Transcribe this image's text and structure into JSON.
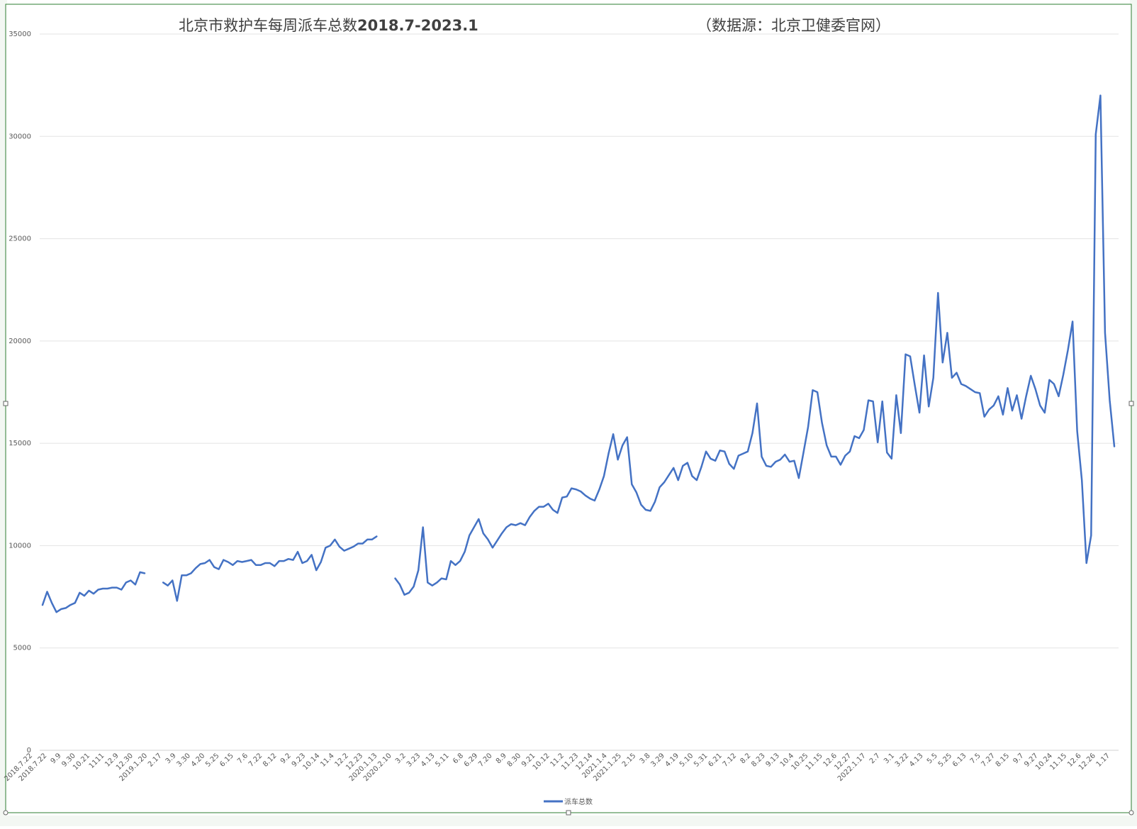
{
  "chart_data": {
    "type": "line",
    "title": "北京市救护车每周派车总数",
    "title_range": "2018.7-2023.1",
    "source_note": "（数据源：北京卫健委官网）",
    "ylim": [
      0,
      35000
    ],
    "y_ticks": [
      0,
      5000,
      10000,
      15000,
      20000,
      25000,
      30000,
      35000
    ],
    "y_tick_labels": [
      "0",
      "5000",
      "10000",
      "15000",
      "20000",
      "25000",
      "30000",
      "35000"
    ],
    "grid": true,
    "legend_position": "bottom",
    "line_color": "#4472C4",
    "x_tick_labels": [
      "2018.7.22",
      "2018.7.22",
      "9.9",
      "9.30",
      "10.21",
      "1111",
      "12.9",
      "12.30",
      "2019.1.20",
      "2.17",
      "3.9",
      "3.30",
      "4.20",
      "5.25",
      "6.15",
      "7.6",
      "7.22",
      "8.12",
      "9.2",
      "9.23",
      "10.14",
      "11.4",
      "12.2",
      "12.23",
      "2020.1.13",
      "2020.2.10",
      "3.2",
      "3.23",
      "4.13",
      "5.11",
      "6.8",
      "6.29",
      "7.20",
      "8.9",
      "8.30",
      "9.21",
      "10.12",
      "11.2",
      "11.23",
      "12.14",
      "2021.1.4",
      "2021.1.25",
      "2.15",
      "3.8",
      "3.29",
      "4.19",
      "5.10",
      "5.31",
      "6.21",
      "7.12",
      "8.2",
      "8.23",
      "9.13",
      "10.4",
      "10.25",
      "11.15",
      "12.6",
      "12.27",
      "2022.1.17",
      "2.7",
      "3.1",
      "3.22",
      "4.13",
      "5.5",
      "5.25",
      "6.13",
      "7.5",
      "7.27",
      "8.15",
      "9.7",
      "9.27",
      "10.24",
      "11.15",
      "12.6",
      "12.26",
      "1.17"
    ],
    "series": [
      {
        "name": "派车总数",
        "segments": [
          [
            7100,
            7750,
            7200,
            6750,
            6900,
            6950,
            7100,
            7200,
            7700,
            7550,
            7800,
            7650,
            7850,
            7900,
            7900,
            7950,
            7950,
            7850,
            8200,
            8300,
            8100,
            8700,
            8650
          ],
          [
            8200,
            8050,
            8300,
            7300,
            8550,
            8550,
            8650,
            8900,
            9100,
            9150,
            9300,
            8950,
            8850,
            9300,
            9200,
            9050,
            9250,
            9200,
            9250,
            9300,
            9050,
            9050,
            9150,
            9150,
            9000,
            9250,
            9250,
            9350,
            9300,
            9700,
            9150,
            9250,
            9550,
            8800,
            9200,
            9900,
            10000,
            10300,
            9950,
            9750,
            9850,
            9950,
            10100,
            10100,
            10300,
            10300,
            10450
          ],
          [
            8400,
            8100,
            7600,
            7700,
            8000,
            8800,
            10900,
            8200,
            8050,
            8200,
            8400,
            8350,
            9250,
            9050,
            9250,
            9700,
            10500,
            10900,
            11300,
            10600,
            10300,
            9900,
            10250,
            10600,
            10900,
            11050,
            11000,
            11100,
            11000,
            11400,
            11700,
            11900,
            11900,
            12050,
            11750,
            11600,
            12350,
            12400,
            12800,
            12750,
            12650,
            12450,
            12300,
            12200,
            12750,
            13400,
            14500,
            15450,
            14200,
            14900,
            15300,
            13000,
            12600,
            12000,
            11750,
            11700,
            12150,
            12850,
            13100,
            13450,
            13800,
            13200,
            13900,
            14050,
            13400,
            13200,
            13850,
            14600,
            14250,
            14150,
            14650,
            14600,
            14000,
            13750,
            14400,
            14500,
            14600,
            15500,
            16950,
            14350,
            13900,
            13850,
            14100,
            14200,
            14450,
            14100,
            14150,
            13300,
            14550,
            15800,
            17600,
            17500,
            16000,
            14900,
            14350,
            14350,
            13950,
            14400,
            14600,
            15350,
            15250,
            15650,
            17100,
            17050,
            15050,
            17050,
            14550,
            14250,
            17350,
            15500,
            19350,
            19250,
            17850,
            16500,
            19300,
            16800,
            18200,
            22350,
            18950,
            20400,
            18200,
            18450,
            17900,
            17800,
            17650,
            17500,
            17450,
            16300,
            16650,
            16850,
            17300,
            16400,
            17700,
            16600,
            17350,
            16200,
            17300,
            18300,
            17650,
            16850,
            16500,
            18100,
            17900,
            17300,
            18350,
            19550,
            20950,
            15600,
            13200,
            9150,
            10500,
            30100,
            32000,
            20400,
            17100,
            14850
          ]
        ]
      }
    ]
  }
}
